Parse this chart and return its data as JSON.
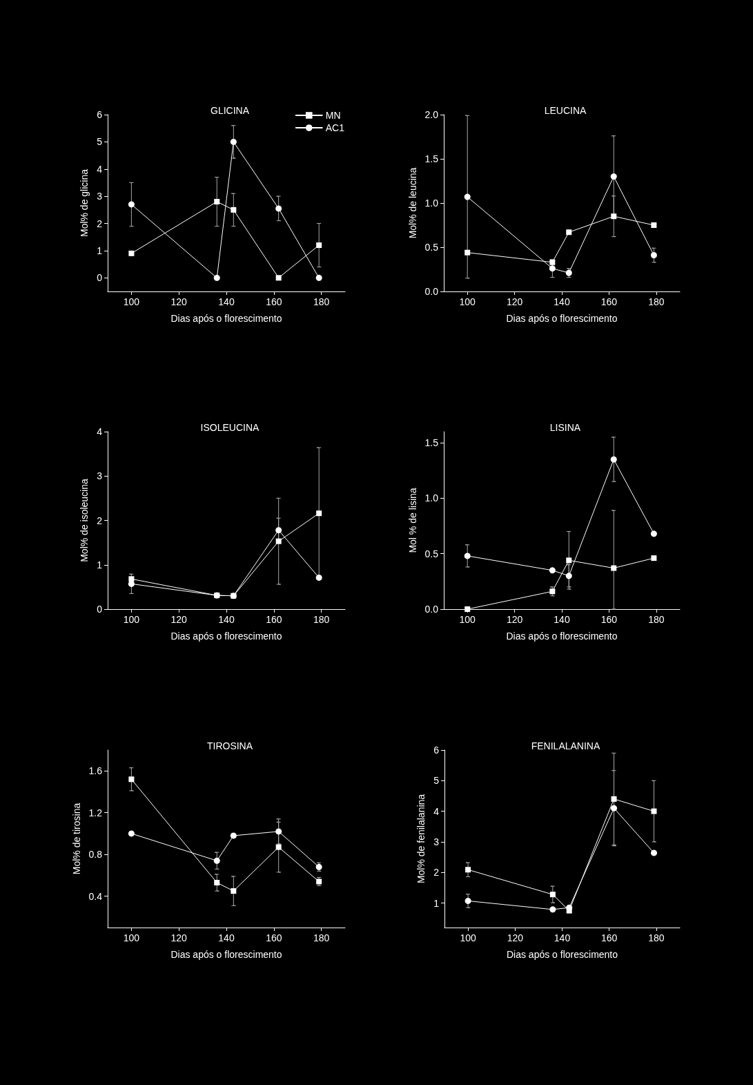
{
  "chart_data": [
    {
      "type": "line",
      "title": "GLICINA",
      "xlabel": "Dias após o florescimento",
      "ylabel": "Mol% de glicina",
      "x": [
        100,
        136,
        143,
        162,
        179
      ],
      "xlim": [
        90,
        190
      ],
      "xticks": [
        100,
        120,
        140,
        160,
        180
      ],
      "ylim": [
        -0.5,
        6
      ],
      "yticks": [
        0,
        1,
        2,
        3,
        4,
        5,
        6
      ],
      "legend": "top right",
      "series": [
        {
          "name": "MN",
          "color": "#ffffff",
          "marker": "square",
          "values": [
            0.9,
            2.8,
            2.5,
            0,
            1.2
          ],
          "errors": [
            null,
            0.9,
            0.6,
            null,
            0.8
          ]
        },
        {
          "name": "AC1",
          "color": "#ffffff",
          "marker": "circle",
          "values": [
            2.7,
            0,
            5.0,
            2.55,
            0
          ],
          "errors": [
            0.8,
            null,
            0.6,
            0.45,
            null
          ]
        }
      ]
    },
    {
      "type": "line",
      "title": "LEUCINA",
      "xlabel": "Dias após o florescimento",
      "ylabel": "Mol% de leucina",
      "x": [
        100,
        136,
        143,
        162,
        179
      ],
      "xlim": [
        90,
        190
      ],
      "xticks": [
        100,
        120,
        140,
        160,
        180
      ],
      "ylim": [
        0,
        2
      ],
      "yticks": [
        {
          "value": 0,
          "label": "0.0"
        },
        0.5,
        {
          "value": 1,
          "label": "1.0"
        },
        1.5,
        {
          "value": 2,
          "label": "2.0"
        }
      ],
      "series": [
        {
          "color": "#ffffff",
          "marker": "square",
          "values": [
            0.44,
            0.33,
            0.67,
            0.85,
            0.75
          ],
          "errors": [
            null,
            null,
            null,
            0.23,
            null
          ]
        },
        {
          "color": "#ffffff",
          "marker": "circle",
          "values": [
            1.07,
            0.26,
            0.21,
            1.3,
            0.41
          ],
          "errors": [
            0.92,
            0.1,
            0.05,
            0.46,
            0.08
          ]
        }
      ]
    },
    {
      "type": "line",
      "title": "ISOLEUCINA",
      "xlabel": "Dias após o florescimento",
      "ylabel": "Mol% de isoleucina",
      "x": [
        100,
        136,
        143,
        162,
        179
      ],
      "xlim": [
        90,
        190
      ],
      "xticks": [
        100,
        120,
        140,
        160,
        180
      ],
      "ylim": [
        0,
        4
      ],
      "yticks": [
        0,
        1,
        2,
        3,
        4
      ],
      "series": [
        {
          "color": "#ffffff",
          "marker": "square",
          "values": [
            0.68,
            0.31,
            0.3,
            1.53,
            2.16
          ],
          "errors": [
            null,
            null,
            null,
            0.97,
            1.48
          ]
        },
        {
          "color": "#ffffff",
          "marker": "circle",
          "values": [
            0.57,
            0.31,
            0.3,
            1.78,
            0.71
          ],
          "errors": [
            0.22,
            null,
            null,
            0.27,
            null
          ]
        }
      ]
    },
    {
      "type": "line",
      "title": "LISINA",
      "xlabel": "Dias após o florescimento",
      "ylabel": "Mol % de lisina",
      "x": [
        100,
        136,
        143,
        162,
        179
      ],
      "xlim": [
        90,
        190
      ],
      "xticks": [
        100,
        120,
        140,
        160,
        180
      ],
      "ylim": [
        0,
        1.6
      ],
      "yticks": [
        {
          "value": 0,
          "label": "0.0"
        },
        0.5,
        {
          "value": 1,
          "label": "1.0"
        },
        1.5
      ],
      "series": [
        {
          "color": "#ffffff",
          "marker": "square",
          "values": [
            0,
            0.16,
            0.44,
            0.37,
            0.46
          ],
          "errors": [
            null,
            0.04,
            0.26,
            [
              0,
              0.89
            ],
            null
          ]
        },
        {
          "color": "#ffffff",
          "marker": "circle",
          "values": [
            0.48,
            0.35,
            0.3,
            1.35,
            0.68
          ],
          "errors": [
            0.1,
            null,
            0.1,
            0.2,
            null
          ]
        }
      ]
    },
    {
      "type": "line",
      "title": "TIROSINA",
      "xlabel": "Dias após o florescimento",
      "ylabel": "Mol% de tirosina",
      "x": [
        100,
        136,
        143,
        162,
        179
      ],
      "xlim": [
        90,
        190
      ],
      "xticks": [
        100,
        120,
        140,
        160,
        180
      ],
      "ylim": [
        0.1,
        1.8
      ],
      "yticks": [
        0.4,
        0.8,
        1.2,
        1.6
      ],
      "series": [
        {
          "color": "#ffffff",
          "marker": "square",
          "values": [
            1.52,
            0.53,
            0.45,
            0.87,
            0.54
          ],
          "errors": [
            0.11,
            0.08,
            0.14,
            0.24,
            0.04
          ]
        },
        {
          "color": "#ffffff",
          "marker": "circle",
          "values": [
            1.0,
            0.74,
            0.98,
            1.02,
            0.68
          ],
          "errors": [
            null,
            0.08,
            null,
            0.12,
            0.04
          ]
        }
      ]
    },
    {
      "type": "line",
      "title": "FENILALANINA",
      "xlabel": "Dias após o florescimento",
      "ylabel": "Mol% de fenilalanina",
      "x": [
        100,
        136,
        143,
        162,
        179
      ],
      "xlim": [
        90,
        190
      ],
      "xticks": [
        100,
        120,
        140,
        160,
        180
      ],
      "ylim": [
        0.2,
        6
      ],
      "yticks": [
        1,
        2,
        3,
        4,
        5,
        6
      ],
      "series": [
        {
          "color": "#ffffff",
          "marker": "square",
          "values": [
            2.09,
            1.28,
            0.75,
            4.4,
            4.0
          ],
          "errors": [
            0.23,
            0.27,
            null,
            1.5,
            1.0
          ]
        },
        {
          "color": "#ffffff",
          "marker": "circle",
          "values": [
            1.07,
            0.79,
            0.85,
            4.1,
            2.64
          ],
          "errors": [
            0.22,
            null,
            null,
            1.23,
            null
          ]
        }
      ]
    }
  ]
}
